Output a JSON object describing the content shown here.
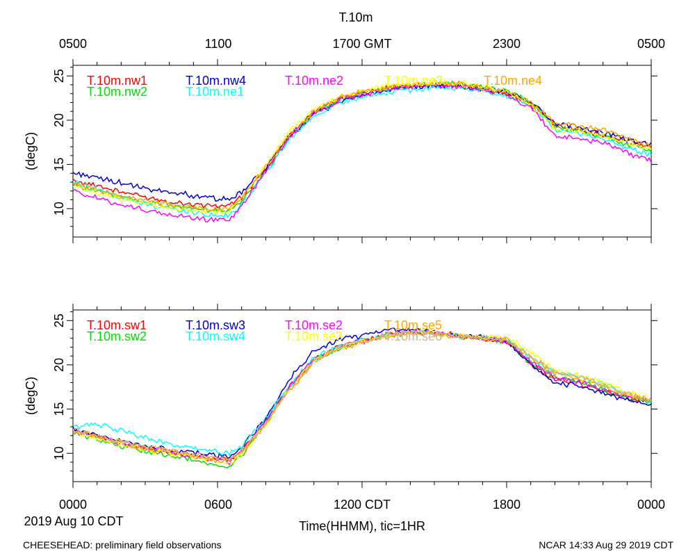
{
  "figure": {
    "title": "T.10m",
    "top_ticks": [
      "0500",
      "1100",
      "1700 GMT",
      "2300",
      "0500"
    ],
    "bottom_ticks": [
      "0000",
      "0600",
      "1200 CDT",
      "1800",
      "0000"
    ],
    "date_label": "2019 Aug 10 CDT",
    "xlabel": "Time(HHMM), tic=1HR",
    "footer_left": "CHEESEHEAD: preliminary field observations",
    "footer_right": "NCAR 14:33 Aug 29 2019 CDT"
  },
  "chart_data": [
    {
      "type": "line",
      "xlabel": "Time(HHMM), tic=1HR",
      "ylabel": "(degC)",
      "xlim": [
        0,
        24
      ],
      "ylim": [
        6.8,
        26.2
      ],
      "yticks": [
        10,
        15,
        20,
        25
      ],
      "xticks_hours": [
        0,
        6,
        12,
        18,
        24
      ],
      "grid": false,
      "legend": "top-left",
      "series": [
        {
          "name": "T.10m.nw1",
          "color": "#ff0000",
          "x": [
            0,
            1,
            2,
            3,
            4,
            5,
            6,
            6.5,
            7,
            8,
            9,
            10,
            11,
            12,
            13,
            14,
            15,
            16,
            17,
            18,
            19,
            20,
            21,
            22,
            23,
            24
          ],
          "y": [
            13.2,
            12.6,
            11.9,
            11.3,
            10.8,
            10.5,
            10.3,
            10.4,
            11.2,
            14.5,
            18.3,
            20.9,
            22.4,
            23.1,
            23.6,
            23.8,
            24.0,
            23.9,
            23.5,
            23.0,
            21.8,
            19.5,
            18.8,
            18.4,
            17.6,
            17.1
          ]
        },
        {
          "name": "T.10m.nw2",
          "color": "#00dd00",
          "x": [
            0,
            1,
            2,
            3,
            4,
            5,
            6,
            6.5,
            7,
            8,
            9,
            10,
            11,
            12,
            13,
            14,
            15,
            16,
            17,
            18,
            19,
            20,
            21,
            22,
            23,
            24
          ],
          "y": [
            12.8,
            12.0,
            11.3,
            10.8,
            10.3,
            10.0,
            9.8,
            9.9,
            10.8,
            14.2,
            18.1,
            20.8,
            22.3,
            23.1,
            23.6,
            23.9,
            24.1,
            24.1,
            23.7,
            23.3,
            22.1,
            19.3,
            18.7,
            18.2,
            17.3,
            16.6
          ]
        },
        {
          "name": "T.10m.nw4",
          "color": "#0000cc",
          "x": [
            0,
            1,
            2,
            3,
            4,
            5,
            6,
            6.5,
            7,
            8,
            9,
            10,
            11,
            12,
            13,
            14,
            15,
            16,
            17,
            18,
            19,
            20,
            21,
            22,
            23,
            24
          ],
          "y": [
            14.1,
            13.5,
            12.9,
            12.2,
            11.9,
            11.5,
            11.1,
            11.0,
            11.8,
            14.6,
            18.2,
            20.7,
            22.0,
            22.8,
            23.3,
            23.6,
            23.9,
            23.9,
            23.5,
            23.1,
            22.1,
            19.7,
            19.2,
            18.6,
            17.8,
            17.3
          ]
        },
        {
          "name": "T.10m.ne1",
          "color": "#00ffff",
          "x": [
            0,
            1,
            2,
            3,
            4,
            5,
            6,
            6.5,
            7,
            8,
            9,
            10,
            11,
            12,
            13,
            14,
            15,
            16,
            17,
            18,
            19,
            20,
            21,
            22,
            23,
            24
          ],
          "y": [
            13.0,
            12.2,
            11.2,
            10.5,
            10.0,
            9.6,
            9.2,
            9.2,
            10.5,
            14.0,
            17.9,
            20.5,
            21.8,
            22.6,
            23.1,
            23.4,
            23.7,
            23.6,
            23.2,
            22.8,
            21.6,
            19.0,
            18.5,
            17.9,
            16.9,
            16.1
          ]
        },
        {
          "name": "T.10m.ne2",
          "color": "#ff00ff",
          "x": [
            0,
            1,
            2,
            3,
            4,
            5,
            6,
            6.5,
            7,
            8,
            9,
            10,
            11,
            12,
            13,
            14,
            15,
            16,
            17,
            18,
            19,
            20,
            21,
            22,
            23,
            24
          ],
          "y": [
            12.0,
            11.2,
            10.5,
            9.8,
            9.3,
            8.9,
            8.7,
            8.8,
            10.3,
            14.3,
            18.2,
            20.8,
            22.2,
            23.0,
            23.5,
            23.8,
            24.0,
            23.9,
            23.4,
            22.9,
            21.4,
            18.3,
            17.9,
            17.4,
            16.3,
            15.4
          ]
        },
        {
          "name": "T.10m.ne3",
          "color": "#ffff00",
          "x": [
            0,
            1,
            2,
            3,
            4,
            5,
            6,
            6.5,
            7,
            8,
            9,
            10,
            11,
            12,
            13,
            14,
            15,
            16,
            17,
            18,
            19,
            20,
            21,
            22,
            23,
            24
          ],
          "y": [
            12.5,
            11.8,
            11.1,
            10.6,
            10.1,
            9.8,
            9.6,
            9.8,
            11.3,
            15.0,
            18.8,
            21.2,
            22.6,
            23.3,
            23.8,
            24.1,
            24.3,
            24.2,
            23.8,
            23.3,
            21.9,
            19.0,
            18.7,
            18.3,
            17.4,
            16.8
          ]
        },
        {
          "name": "T.10m.ne4",
          "color": "#ffa500",
          "x": [
            0,
            1,
            2,
            3,
            4,
            5,
            6,
            6.5,
            7,
            8,
            9,
            10,
            11,
            12,
            13,
            14,
            15,
            16,
            17,
            18,
            19,
            20,
            21,
            22,
            23,
            24
          ],
          "y": [
            12.9,
            12.2,
            11.5,
            10.9,
            10.5,
            10.2,
            10.0,
            10.1,
            11.2,
            14.6,
            18.4,
            21.0,
            22.5,
            23.2,
            23.7,
            24.0,
            24.2,
            24.1,
            23.7,
            23.2,
            22.0,
            19.6,
            19.3,
            18.9,
            17.9,
            17.0
          ]
        }
      ]
    },
    {
      "type": "line",
      "xlabel": "Time(HHMM), tic=1HR",
      "ylabel": "(degC)",
      "xlim": [
        0,
        24
      ],
      "ylim": [
        6.8,
        26.2
      ],
      "yticks": [
        10,
        15,
        20,
        25
      ],
      "xticks_hours": [
        0,
        6,
        12,
        18,
        24
      ],
      "grid": false,
      "legend": "top-left",
      "series": [
        {
          "name": "T.10m.sw1",
          "color": "#ff0000",
          "x": [
            0,
            1,
            2,
            3,
            4,
            5,
            6,
            6.5,
            7,
            8,
            9,
            10,
            11,
            12,
            13,
            14,
            15,
            16,
            17,
            18,
            19,
            20,
            21,
            22,
            23,
            24
          ],
          "y": [
            12.6,
            11.9,
            11.2,
            10.6,
            10.2,
            9.8,
            9.4,
            9.3,
            10.3,
            13.6,
            17.6,
            20.6,
            22.0,
            22.8,
            23.4,
            23.8,
            23.6,
            23.3,
            23.0,
            22.7,
            20.1,
            18.4,
            17.9,
            17.1,
            16.2,
            15.9
          ]
        },
        {
          "name": "T.10m.sw2",
          "color": "#00dd00",
          "x": [
            0,
            1,
            2,
            3,
            4,
            5,
            6,
            6.5,
            7,
            8,
            9,
            10,
            11,
            12,
            13,
            14,
            15,
            16,
            17,
            18,
            19,
            20,
            21,
            22,
            23,
            24
          ],
          "y": [
            12.3,
            11.6,
            10.8,
            10.2,
            9.7,
            9.2,
            8.6,
            8.5,
            9.8,
            13.4,
            17.5,
            20.5,
            21.9,
            22.7,
            23.3,
            23.7,
            23.6,
            23.2,
            23.0,
            22.6,
            20.2,
            18.6,
            18.1,
            17.2,
            16.3,
            15.8
          ]
        },
        {
          "name": "T.10m.sw3",
          "color": "#0000cc",
          "x": [
            0,
            1,
            2,
            3,
            4,
            5,
            6,
            6.5,
            7,
            8,
            9,
            10,
            11,
            12,
            13,
            14,
            15,
            16,
            17,
            18,
            19,
            20,
            21,
            22,
            23,
            24
          ],
          "y": [
            12.8,
            12.0,
            11.4,
            10.8,
            10.4,
            10.1,
            9.7,
            9.6,
            10.6,
            14.0,
            18.4,
            21.5,
            22.8,
            23.3,
            23.9,
            24.0,
            23.7,
            23.4,
            23.1,
            22.8,
            20.0,
            18.1,
            17.6,
            16.8,
            16.0,
            15.5
          ]
        },
        {
          "name": "T.10m.sw4",
          "color": "#00ffff",
          "x": [
            0,
            1,
            2,
            3,
            4,
            5,
            6,
            6.5,
            7,
            8,
            9,
            10,
            11,
            12,
            13,
            14,
            15,
            16,
            17,
            18,
            19,
            20,
            21,
            22,
            23,
            24
          ],
          "y": [
            13.0,
            13.3,
            12.6,
            11.8,
            11.0,
            10.5,
            10.1,
            10.0,
            10.8,
            13.9,
            17.8,
            20.8,
            22.1,
            22.8,
            23.3,
            23.7,
            23.5,
            23.2,
            23.0,
            22.9,
            20.8,
            19.2,
            18.7,
            17.8,
            16.7,
            15.9
          ]
        },
        {
          "name": "T.10m.se2",
          "color": "#ff00ff",
          "x": [
            0,
            1,
            2,
            3,
            4,
            5,
            6,
            6.5,
            7,
            8,
            9,
            10,
            11,
            12,
            13,
            14,
            15,
            16,
            17,
            18,
            19,
            20,
            21,
            22,
            23,
            24
          ],
          "y": [
            12.5,
            11.8,
            11.1,
            10.5,
            10.1,
            9.7,
            9.2,
            9.1,
            10.2,
            13.6,
            17.6,
            20.6,
            22.0,
            22.7,
            23.3,
            23.7,
            23.6,
            23.3,
            23.0,
            22.7,
            20.3,
            18.5,
            18.0,
            17.3,
            16.4,
            16.0
          ]
        },
        {
          "name": "T.10m.se3",
          "color": "#ffff00",
          "x": [
            0,
            1,
            2,
            3,
            4,
            5,
            6,
            6.5,
            7,
            8,
            9,
            10,
            11,
            12,
            13,
            14,
            15,
            16,
            17,
            18,
            19,
            20,
            21,
            22,
            23,
            24
          ],
          "y": [
            12.4,
            11.7,
            11.0,
            10.4,
            10.0,
            9.6,
            9.1,
            9.0,
            10.0,
            13.3,
            17.3,
            20.4,
            21.9,
            22.7,
            23.3,
            23.7,
            23.6,
            23.4,
            23.2,
            23.1,
            21.4,
            19.4,
            18.9,
            17.9,
            16.9,
            16.2
          ]
        },
        {
          "name": "T.10m.se5",
          "color": "#ffa500",
          "x": [
            0,
            1,
            2,
            3,
            4,
            5,
            6,
            6.5,
            7,
            8,
            9,
            10,
            11,
            12,
            13,
            14,
            15,
            16,
            17,
            18,
            19,
            20,
            21,
            22,
            23,
            24
          ],
          "y": [
            12.6,
            11.9,
            11.2,
            10.6,
            10.2,
            9.8,
            9.3,
            9.2,
            10.1,
            13.3,
            17.2,
            20.3,
            21.8,
            22.6,
            23.2,
            23.6,
            23.5,
            23.2,
            23.0,
            22.8,
            20.8,
            19.0,
            18.5,
            17.6,
            16.6,
            16.0
          ]
        },
        {
          "name": "T.10m.se6",
          "color": "#d2b48c",
          "x": [
            0,
            1,
            2,
            3,
            4,
            5,
            6,
            6.5,
            7,
            8,
            9,
            10,
            11,
            12,
            13,
            14,
            15,
            16,
            17,
            18,
            19,
            20,
            21,
            22,
            23,
            24
          ],
          "y": [
            12.7,
            12.0,
            11.3,
            10.7,
            10.3,
            9.9,
            9.4,
            9.3,
            10.2,
            13.4,
            17.3,
            20.4,
            21.9,
            22.7,
            23.3,
            23.7,
            23.6,
            23.3,
            23.1,
            22.9,
            20.9,
            19.1,
            18.6,
            17.7,
            16.7,
            16.1
          ]
        }
      ]
    }
  ]
}
